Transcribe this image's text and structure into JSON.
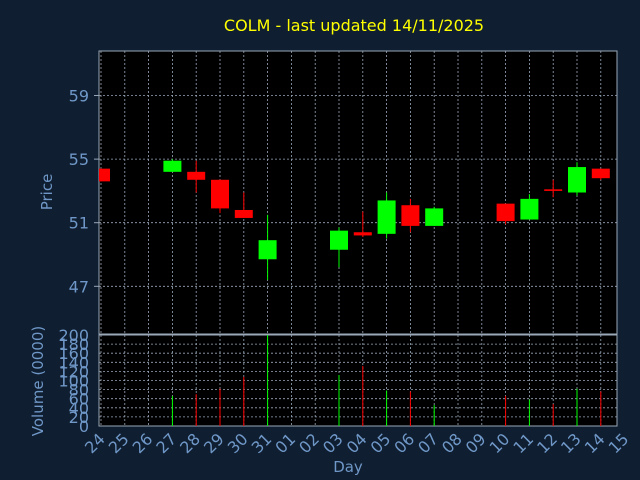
{
  "chart_data": {
    "type": "candlestick",
    "title": "COLM - last updated 14/11/2025",
    "price_panel": {
      "ylabel": "Price",
      "ylim": [
        44.0,
        61.8
      ],
      "yticks": [
        47,
        51,
        55,
        59
      ]
    },
    "volume_panel": {
      "ylabel": "Volume (0000)",
      "ylim": [
        0,
        200
      ],
      "yticks": [
        0,
        20,
        40,
        60,
        80,
        100,
        120,
        140,
        160,
        180,
        200
      ]
    },
    "xlabel": "Day",
    "x_labels": [
      "24",
      "25",
      "26",
      "27",
      "28",
      "29",
      "30",
      "31",
      "01",
      "02",
      "03",
      "04",
      "05",
      "06",
      "07",
      "08",
      "09",
      "10",
      "11",
      "12",
      "13",
      "14",
      "15"
    ],
    "colors": {
      "up": "#00ff00",
      "down": "#ff0000",
      "title": "#ffff00",
      "axis_text": "#6f97c7",
      "background": "#0f1e30",
      "plot_background": "#000000"
    },
    "series": [
      {
        "day": "24",
        "open": 54.4,
        "high": 54.4,
        "low": 53.6,
        "close": 53.6,
        "volume": 0
      },
      {
        "day": "27",
        "open": 54.2,
        "high": 55.0,
        "low": 54.2,
        "close": 54.9,
        "volume": 66
      },
      {
        "day": "28",
        "open": 54.2,
        "high": 54.9,
        "low": 52.9,
        "close": 53.7,
        "volume": 70
      },
      {
        "day": "29",
        "open": 53.7,
        "high": 53.7,
        "low": 51.6,
        "close": 51.9,
        "volume": 82
      },
      {
        "day": "30",
        "open": 51.8,
        "high": 52.9,
        "low": 51.3,
        "close": 51.3,
        "volume": 108
      },
      {
        "day": "31",
        "open": 48.7,
        "high": 51.5,
        "low": 47.4,
        "close": 49.9,
        "volume": 200
      },
      {
        "day": "03",
        "open": 49.3,
        "high": 50.7,
        "low": 48.2,
        "close": 50.5,
        "volume": 112
      },
      {
        "day": "04",
        "open": 50.4,
        "high": 51.7,
        "low": 50.1,
        "close": 50.2,
        "volume": 132
      },
      {
        "day": "05",
        "open": 50.3,
        "high": 52.9,
        "low": 50.0,
        "close": 52.4,
        "volume": 78
      },
      {
        "day": "06",
        "open": 52.1,
        "high": 52.5,
        "low": 50.4,
        "close": 50.8,
        "volume": 76
      },
      {
        "day": "07",
        "open": 50.8,
        "high": 52.0,
        "low": 50.8,
        "close": 51.9,
        "volume": 46
      },
      {
        "day": "10",
        "open": 52.2,
        "high": 52.2,
        "low": 50.9,
        "close": 51.1,
        "volume": 66
      },
      {
        "day": "11",
        "open": 51.2,
        "high": 52.8,
        "low": 51.2,
        "close": 52.5,
        "volume": 58
      },
      {
        "day": "12",
        "open": 53.1,
        "high": 53.7,
        "low": 52.6,
        "close": 53.0,
        "volume": 48
      },
      {
        "day": "13",
        "open": 52.9,
        "high": 54.8,
        "low": 52.7,
        "close": 54.5,
        "volume": 82
      },
      {
        "day": "14",
        "open": 54.4,
        "high": 54.4,
        "low": 53.7,
        "close": 53.8,
        "volume": 76
      }
    ]
  }
}
